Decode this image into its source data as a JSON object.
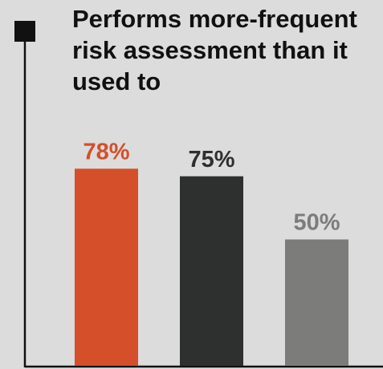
{
  "chart_data": {
    "type": "bar",
    "title": "Performs more-frequent risk assessment than it used to",
    "categories": [
      "",
      "",
      ""
    ],
    "values": [
      78,
      75,
      50
    ],
    "value_labels": [
      "78%",
      "75%",
      "50%"
    ],
    "bar_colors": [
      "#d44f2a",
      "#2e2f2f",
      "#7c7c7b"
    ],
    "label_colors": [
      "#d44f2a",
      "#2e2f2f",
      "#7c7c7b"
    ],
    "ylim": [
      0,
      100
    ],
    "xlabel": "",
    "ylabel": "",
    "grid": false,
    "legend": "none"
  },
  "colors": {
    "background": "#dcdcdc",
    "axis": "#111111",
    "title": "#111111",
    "marker": "#111111"
  }
}
